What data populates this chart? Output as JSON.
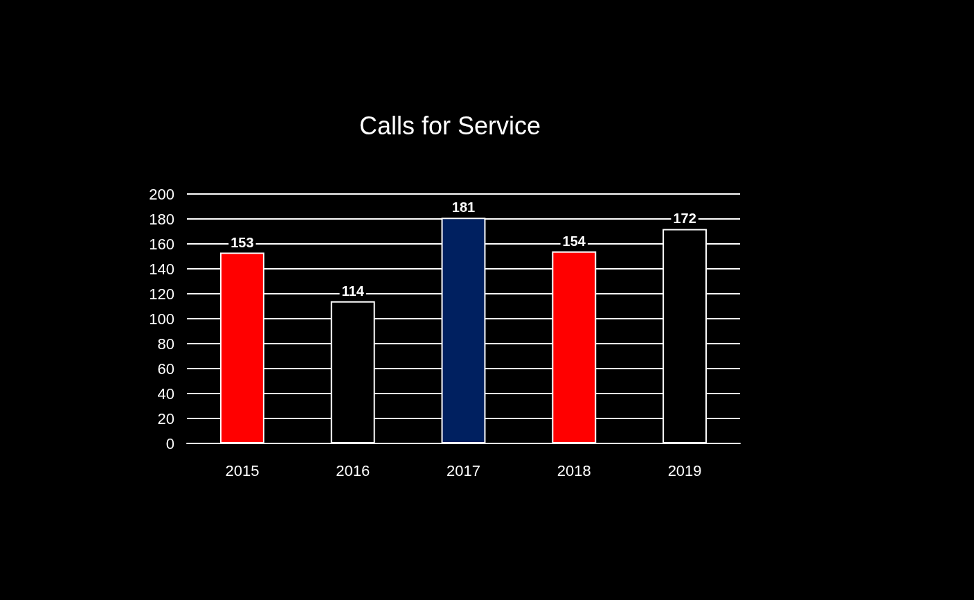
{
  "chart_data": {
    "type": "bar",
    "title": "Calls for Service",
    "categories": [
      "2015",
      "2016",
      "2017",
      "2018",
      "2019"
    ],
    "values": [
      153,
      114,
      181,
      154,
      172
    ],
    "colors": [
      "#ff0000",
      "#000000",
      "#002060",
      "#ff0000",
      "#000000"
    ],
    "ylim": [
      0,
      200
    ],
    "yticks": [
      0,
      20,
      40,
      60,
      80,
      100,
      120,
      140,
      160,
      180,
      200
    ],
    "grid": "y",
    "data_labels": true
  }
}
